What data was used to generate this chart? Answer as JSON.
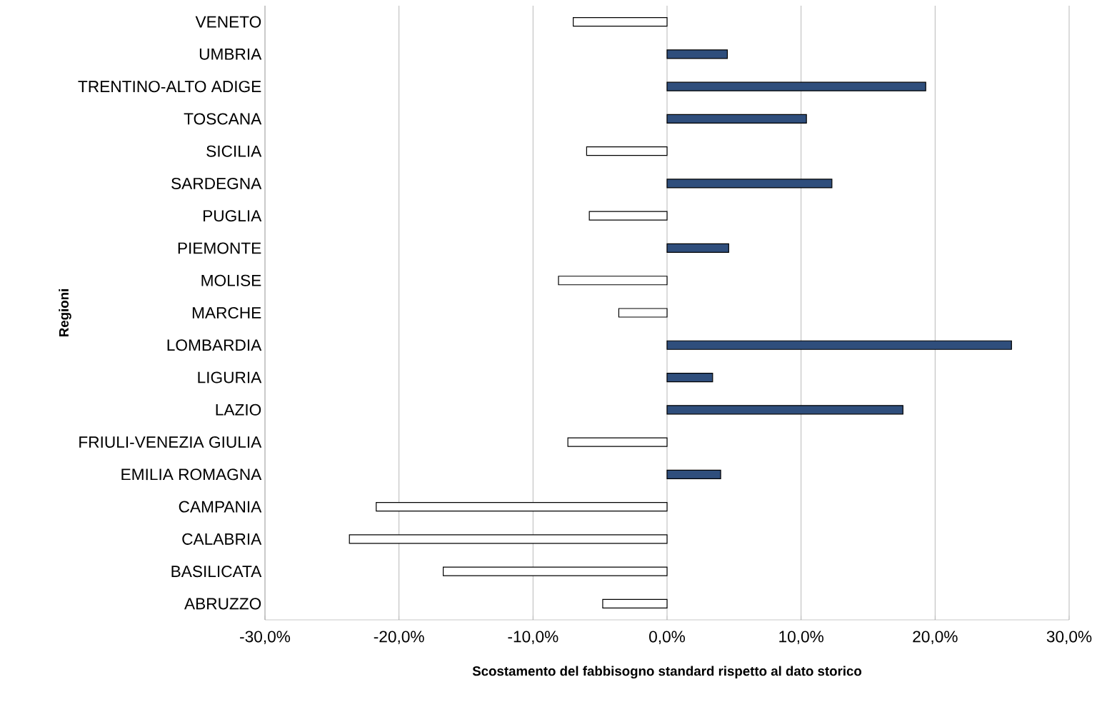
{
  "chart_data": {
    "type": "bar",
    "orientation": "horizontal",
    "xlabel": "Scostamento  del fabbisogno standard rispetto al dato storico",
    "ylabel": "Regioni",
    "categories": [
      "VENETO",
      "UMBRIA",
      "TRENTINO-ALTO ADIGE",
      "TOSCANA",
      "SICILIA",
      "SARDEGNA",
      "PUGLIA",
      "PIEMONTE",
      "MOLISE",
      "MARCHE",
      "LOMBARDIA",
      "LIGURIA",
      "LAZIO",
      "FRIULI-VENEZIA GIULIA",
      "EMILIA ROMAGNA",
      "CAMPANIA",
      "CALABRIA",
      "BASILICATA",
      "ABRUZZO"
    ],
    "values": [
      -7.0,
      4.5,
      19.3,
      10.4,
      -6.0,
      12.3,
      -5.8,
      4.6,
      -8.1,
      -3.6,
      25.7,
      3.4,
      17.6,
      -7.4,
      4.0,
      -21.7,
      -23.7,
      -16.7,
      -4.8
    ],
    "colors": [
      "#ffffff",
      "#2f4e7c",
      "#2f4e7c",
      "#2f4e7c",
      "#ffffff",
      "#2f4e7c",
      "#ffffff",
      "#2f4e7c",
      "#ffffff",
      "#ffffff",
      "#2f4e7c",
      "#2f4e7c",
      "#2f4e7c",
      "#ffffff",
      "#2f4e7c",
      "#ffffff",
      "#ffffff",
      "#ffffff",
      "#ffffff"
    ],
    "xlim": [
      -30,
      30
    ],
    "xticks": [
      {
        "value": -30,
        "label": "-30,0%"
      },
      {
        "value": -20,
        "label": "-20,0%"
      },
      {
        "value": -10,
        "label": "-10,0%"
      },
      {
        "value": 0,
        "label": "0,0%"
      },
      {
        "value": 10,
        "label": "10,0%"
      },
      {
        "value": 20,
        "label": "20,0%"
      },
      {
        "value": 30,
        "label": "30,0%"
      }
    ],
    "grid": "x"
  }
}
